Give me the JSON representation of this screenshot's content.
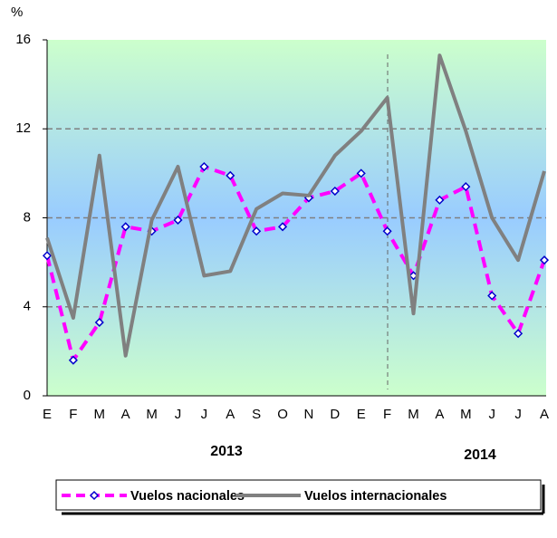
{
  "chart_data": {
    "type": "line",
    "y_unit": "%",
    "categories": [
      "E",
      "F",
      "M",
      "A",
      "M",
      "J",
      "J",
      "A",
      "S",
      "O",
      "N",
      "D",
      "E",
      "F",
      "M",
      "A",
      "M",
      "J",
      "J",
      "A"
    ],
    "annotations": [
      "2013",
      "2014"
    ],
    "series": [
      {
        "name": "Vuelos nacionales",
        "color": "#ff00ff",
        "marker_color": "#0000cc",
        "dashed": true,
        "values": [
          6.3,
          1.6,
          3.3,
          7.6,
          7.4,
          7.9,
          10.3,
          9.9,
          7.4,
          7.6,
          8.9,
          9.2,
          10.0,
          7.4,
          5.4,
          8.8,
          9.4,
          4.5,
          2.8,
          6.1
        ]
      },
      {
        "name": "Vuelos internacionales",
        "color": "#808080",
        "dashed": false,
        "values": [
          7.1,
          3.5,
          10.8,
          1.8,
          7.9,
          10.3,
          5.4,
          5.6,
          8.4,
          9.1,
          9.0,
          10.8,
          11.9,
          13.4,
          3.7,
          15.3,
          11.9,
          8.0,
          6.1,
          10.1
        ]
      }
    ],
    "ylim": [
      0,
      16
    ],
    "yticks": [
      0,
      4,
      8,
      12,
      16
    ],
    "grid": true
  }
}
